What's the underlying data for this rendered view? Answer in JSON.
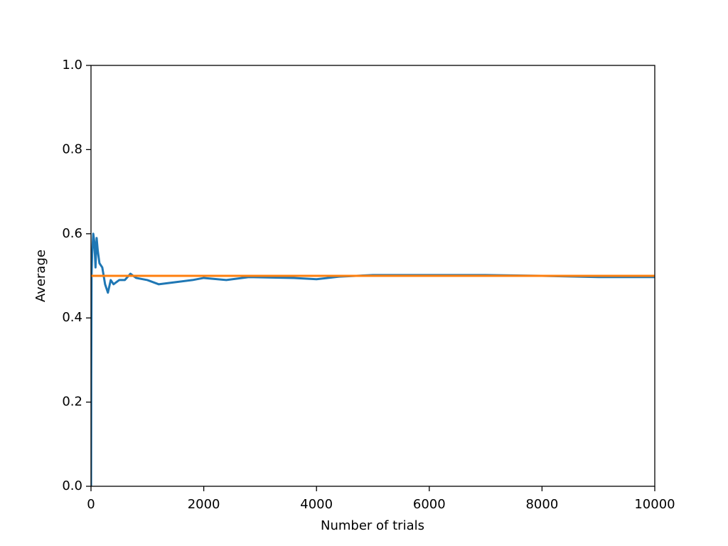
{
  "chart_data": {
    "type": "line",
    "xlabel": "Number of trials",
    "ylabel": "Average",
    "xlim": [
      0,
      10000
    ],
    "ylim": [
      0,
      1
    ],
    "xticks": [
      0,
      2000,
      4000,
      6000,
      8000,
      10000
    ],
    "yticks": [
      {
        "value": 0,
        "label": "0.0"
      },
      0.2,
      0.4,
      0.6,
      0.8,
      {
        "value": 1,
        "label": "1.0"
      }
    ],
    "grid": false,
    "series": [
      {
        "color": "#1f77b4",
        "x": [
          1,
          4,
          10,
          20,
          40,
          60,
          80,
          100,
          120,
          150,
          200,
          250,
          300,
          350,
          400,
          500,
          600,
          700,
          800,
          1000,
          1200,
          1500,
          1800,
          2000,
          2400,
          2800,
          3200,
          3600,
          4000,
          4400,
          5000,
          6000,
          7000,
          8000,
          9000,
          10000
        ],
        "values": [
          0,
          0.25,
          0.5,
          0.55,
          0.6,
          0.58,
          0.52,
          0.59,
          0.56,
          0.53,
          0.52,
          0.48,
          0.46,
          0.49,
          0.48,
          0.49,
          0.49,
          0.505,
          0.495,
          0.49,
          0.48,
          0.485,
          0.49,
          0.495,
          0.49,
          0.497,
          0.496,
          0.495,
          0.492,
          0.498,
          0.502,
          0.502,
          0.502,
          0.5,
          0.497,
          0.497
        ]
      },
      {
        "color": "#ff7f0e",
        "x": [
          0,
          10000
        ],
        "values": [
          0.5,
          0.5
        ]
      }
    ]
  }
}
